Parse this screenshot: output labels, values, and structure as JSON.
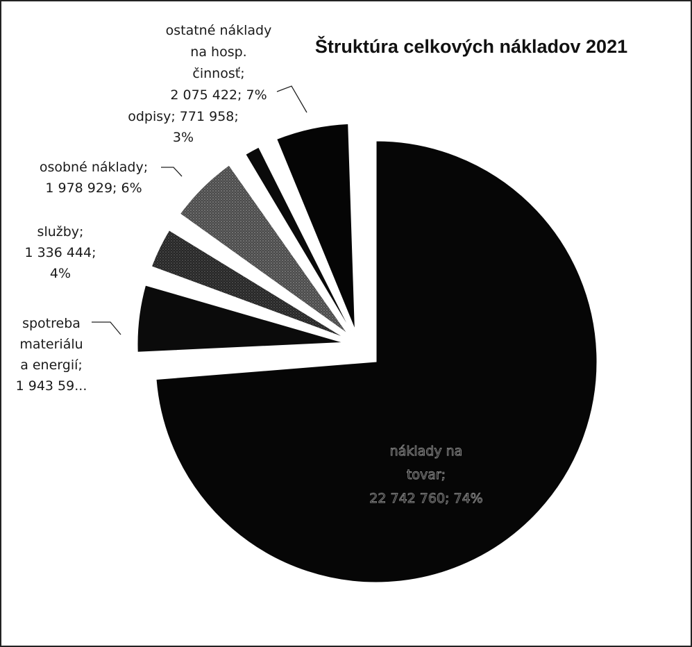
{
  "chart_data": {
    "type": "pie",
    "title": "Štruktúra celkových nákladov 2021",
    "slices": [
      {
        "name": "náklady na tovar",
        "value": 22742760,
        "percent": 74,
        "color": "#060606",
        "label_lines": [
          "náklady na",
          "tovar;",
          "22 742 760; 74%"
        ]
      },
      {
        "name": "spotreba materiálu a energií",
        "value": 1943590,
        "percent": 6,
        "color": "#0b0b0b",
        "label_lines": [
          "spotreba",
          "materiálu",
          "a energií;",
          "1 943 59..."
        ]
      },
      {
        "name": "služby",
        "value": 1336444,
        "percent": 4,
        "color": "#2b2b2b",
        "label_lines": [
          "služby;",
          "1 336 444;",
          "4%"
        ]
      },
      {
        "name": "osobné náklady",
        "value": 1978929,
        "percent": 6,
        "color": "#444444",
        "label_lines": [
          "osobné náklady;",
          "1 978 929; 6%"
        ]
      },
      {
        "name": "odpisy",
        "value": 771958,
        "percent": 3,
        "color": "#0a0a0a",
        "label_lines": [
          "odpisy; 771 958;",
          "3%"
        ]
      },
      {
        "name": "ostatné náklady na hosp. činnosť",
        "value": 2075422,
        "percent": 7,
        "color": "#050505",
        "label_lines": [
          "ostatné náklady",
          "na hosp.",
          "činnosť;",
          "2 075 422; 7%"
        ]
      }
    ]
  }
}
